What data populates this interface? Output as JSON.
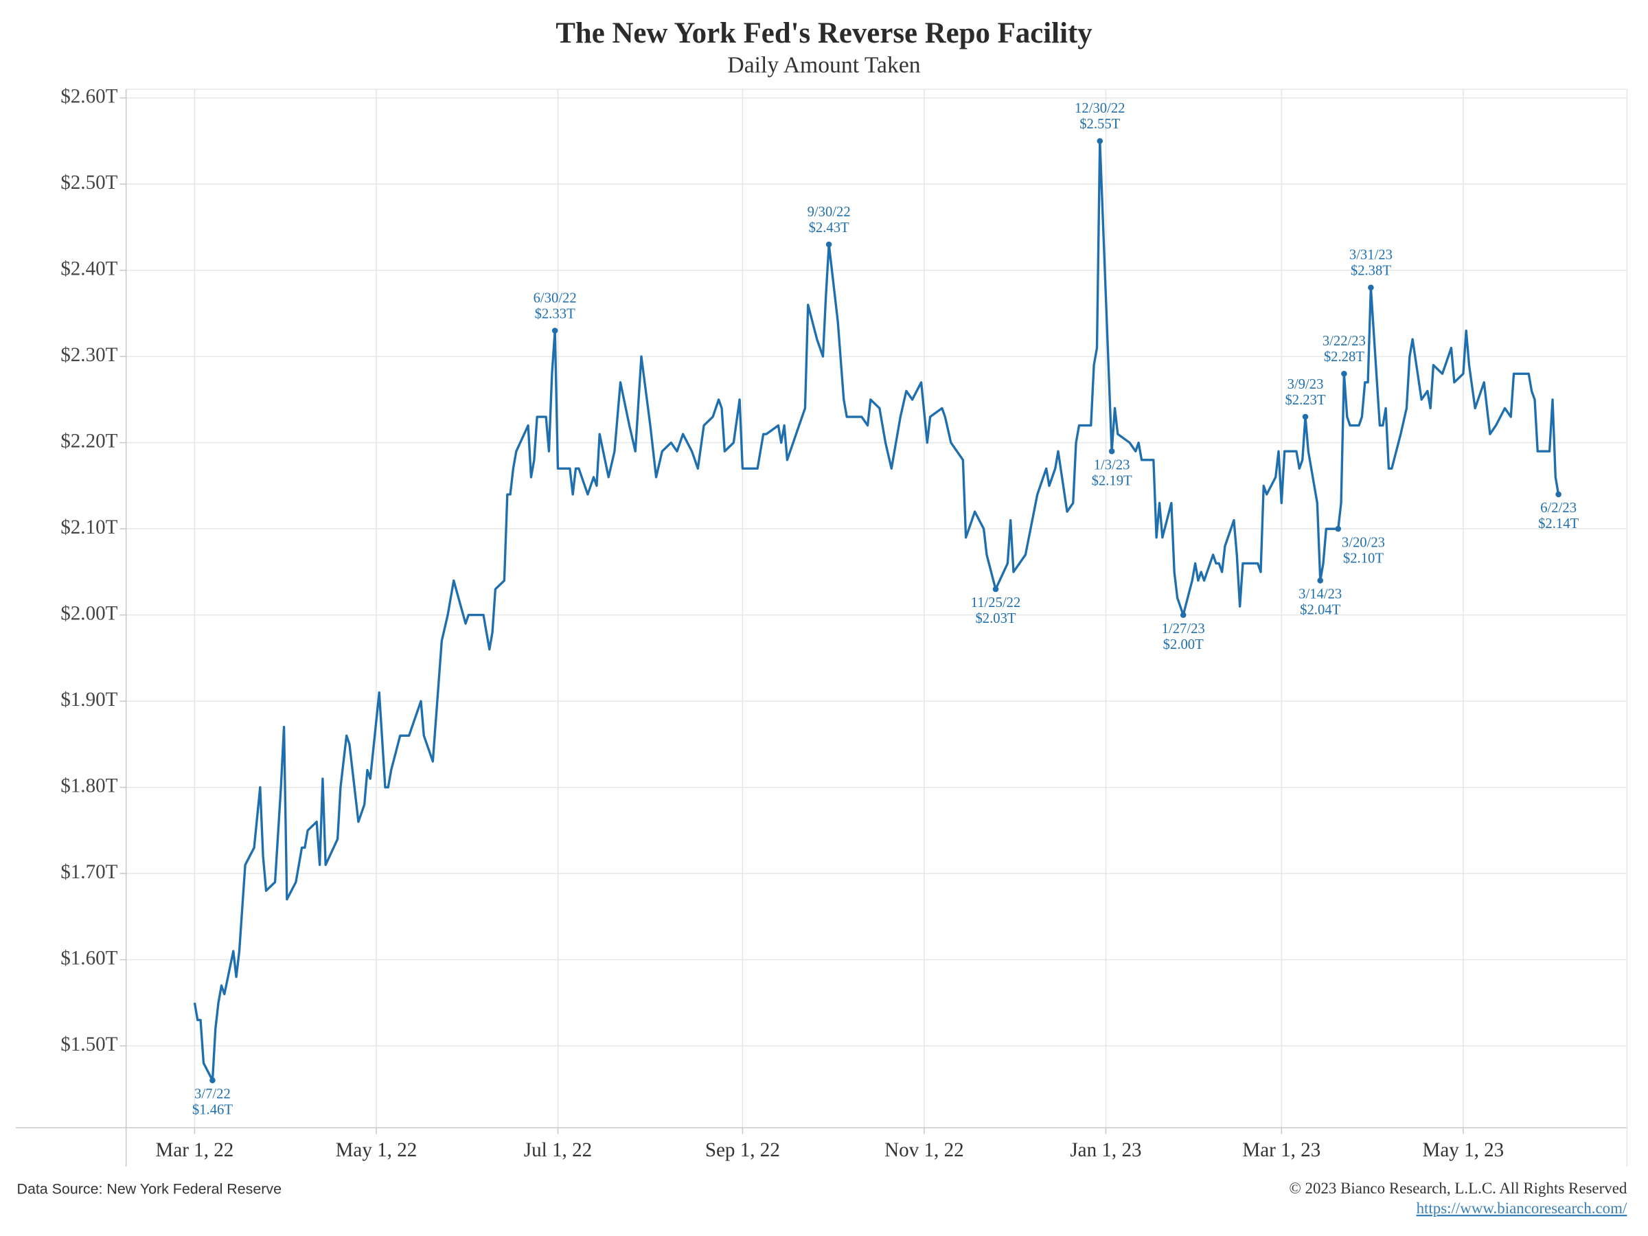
{
  "chart_data": {
    "type": "line",
    "title": "The New York Fed's Reverse Repo Facility",
    "subtitle": "Daily Amount Taken",
    "source": "Data Source: New York Federal Reserve",
    "copyright": "© 2023 Bianco Research, L.L.C. All Rights Reserved",
    "url": "https://www.biancoresearch.com/",
    "color": "#1f6fae",
    "grid": true,
    "xlim": [
      "2022-02-06",
      "2023-06-25"
    ],
    "ylim": [
      1.405,
      2.61
    ],
    "xticks": [
      {
        "value": "2022-03-01",
        "label": "Mar 1, 22"
      },
      {
        "value": "2022-05-01",
        "label": "May 1, 22"
      },
      {
        "value": "2022-07-01",
        "label": "Jul 1, 22"
      },
      {
        "value": "2022-09-01",
        "label": "Sep 1, 22"
      },
      {
        "value": "2022-11-01",
        "label": "Nov 1, 22"
      },
      {
        "value": "2023-01-01",
        "label": "Jan 1, 23"
      },
      {
        "value": "2023-03-01",
        "label": "Mar 1, 23"
      },
      {
        "value": "2023-05-01",
        "label": "May 1, 23"
      }
    ],
    "yticks": [
      {
        "value": 1.5,
        "label": "$1.50T"
      },
      {
        "value": 1.6,
        "label": "$1.60T"
      },
      {
        "value": 1.7,
        "label": "$1.70T"
      },
      {
        "value": 1.8,
        "label": "$1.80T"
      },
      {
        "value": 1.9,
        "label": "$1.90T"
      },
      {
        "value": 2.0,
        "label": "$2.00T"
      },
      {
        "value": 2.1,
        "label": "$2.10T"
      },
      {
        "value": 2.2,
        "label": "$2.20T"
      },
      {
        "value": 2.3,
        "label": "$2.30T"
      },
      {
        "value": 2.4,
        "label": "$2.40T"
      },
      {
        "value": 2.5,
        "label": "$2.50T"
      },
      {
        "value": 2.6,
        "label": "$2.60T"
      }
    ],
    "x": [
      "2022-03-01",
      "2022-03-02",
      "2022-03-03",
      "2022-03-04",
      "2022-03-07",
      "2022-03-08",
      "2022-03-09",
      "2022-03-10",
      "2022-03-11",
      "2022-03-14",
      "2022-03-15",
      "2022-03-16",
      "2022-03-17",
      "2022-03-18",
      "2022-03-21",
      "2022-03-23",
      "2022-03-24",
      "2022-03-25",
      "2022-03-28",
      "2022-03-30",
      "2022-03-31",
      "2022-04-01",
      "2022-04-04",
      "2022-04-06",
      "2022-04-07",
      "2022-04-08",
      "2022-04-11",
      "2022-04-12",
      "2022-04-13",
      "2022-04-14",
      "2022-04-18",
      "2022-04-19",
      "2022-04-21",
      "2022-04-22",
      "2022-04-25",
      "2022-04-27",
      "2022-04-28",
      "2022-04-29",
      "2022-05-02",
      "2022-05-04",
      "2022-05-05",
      "2022-05-06",
      "2022-05-09",
      "2022-05-11",
      "2022-05-12",
      "2022-05-13",
      "2022-05-16",
      "2022-05-17",
      "2022-05-19",
      "2022-05-20",
      "2022-05-23",
      "2022-05-25",
      "2022-05-27",
      "2022-05-31",
      "2022-06-01",
      "2022-06-03",
      "2022-06-06",
      "2022-06-07",
      "2022-06-08",
      "2022-06-09",
      "2022-06-10",
      "2022-06-13",
      "2022-06-14",
      "2022-06-15",
      "2022-06-16",
      "2022-06-17",
      "2022-06-21",
      "2022-06-22",
      "2022-06-23",
      "2022-06-24",
      "2022-06-27",
      "2022-06-28",
      "2022-06-29",
      "2022-06-30",
      "2022-07-01",
      "2022-07-05",
      "2022-07-06",
      "2022-07-07",
      "2022-07-08",
      "2022-07-11",
      "2022-07-13",
      "2022-07-14",
      "2022-07-15",
      "2022-07-18",
      "2022-07-20",
      "2022-07-22",
      "2022-07-25",
      "2022-07-27",
      "2022-07-29",
      "2022-08-01",
      "2022-08-03",
      "2022-08-05",
      "2022-08-08",
      "2022-08-10",
      "2022-08-12",
      "2022-08-15",
      "2022-08-17",
      "2022-08-19",
      "2022-08-22",
      "2022-08-24",
      "2022-08-25",
      "2022-08-26",
      "2022-08-29",
      "2022-08-31",
      "2022-09-01",
      "2022-09-06",
      "2022-09-08",
      "2022-09-09",
      "2022-09-13",
      "2022-09-14",
      "2022-09-15",
      "2022-09-16",
      "2022-09-20",
      "2022-09-22",
      "2022-09-23",
      "2022-09-26",
      "2022-09-28",
      "2022-09-29",
      "2022-09-30",
      "2022-10-03",
      "2022-10-05",
      "2022-10-06",
      "2022-10-07",
      "2022-10-11",
      "2022-10-13",
      "2022-10-14",
      "2022-10-17",
      "2022-10-19",
      "2022-10-21",
      "2022-10-24",
      "2022-10-26",
      "2022-10-28",
      "2022-10-31",
      "2022-11-02",
      "2022-11-03",
      "2022-11-07",
      "2022-11-08",
      "2022-11-10",
      "2022-11-14",
      "2022-11-15",
      "2022-11-17",
      "2022-11-18",
      "2022-11-21",
      "2022-11-22",
      "2022-11-25",
      "2022-11-29",
      "2022-11-30",
      "2022-12-01",
      "2022-12-05",
      "2022-12-09",
      "2022-12-12",
      "2022-12-13",
      "2022-12-15",
      "2022-12-16",
      "2022-12-19",
      "2022-12-21",
      "2022-12-22",
      "2022-12-23",
      "2022-12-27",
      "2022-12-28",
      "2022-12-29",
      "2022-12-30",
      "2023-01-03",
      "2023-01-04",
      "2023-01-05",
      "2023-01-09",
      "2023-01-11",
      "2023-01-12",
      "2023-01-13",
      "2023-01-17",
      "2023-01-18",
      "2023-01-19",
      "2023-01-20",
      "2023-01-23",
      "2023-01-24",
      "2023-01-25",
      "2023-01-27",
      "2023-01-30",
      "2023-01-31",
      "2023-02-01",
      "2023-02-02",
      "2023-02-03",
      "2023-02-06",
      "2023-02-07",
      "2023-02-08",
      "2023-02-09",
      "2023-02-10",
      "2023-02-13",
      "2023-02-14",
      "2023-02-15",
      "2023-02-16",
      "2023-02-17",
      "2023-02-21",
      "2023-02-22",
      "2023-02-23",
      "2023-02-24",
      "2023-02-27",
      "2023-02-28",
      "2023-03-01",
      "2023-03-02",
      "2023-03-03",
      "2023-03-06",
      "2023-03-07",
      "2023-03-08",
      "2023-03-09",
      "2023-03-10",
      "2023-03-13",
      "2023-03-14",
      "2023-03-15",
      "2023-03-16",
      "2023-03-17",
      "2023-03-20",
      "2023-03-21",
      "2023-03-22",
      "2023-03-23",
      "2023-03-24",
      "2023-03-27",
      "2023-03-28",
      "2023-03-29",
      "2023-03-30",
      "2023-03-31",
      "2023-04-03",
      "2023-04-04",
      "2023-04-05",
      "2023-04-06",
      "2023-04-07",
      "2023-04-10",
      "2023-04-12",
      "2023-04-13",
      "2023-04-14",
      "2023-04-17",
      "2023-04-19",
      "2023-04-20",
      "2023-04-21",
      "2023-04-24",
      "2023-04-25",
      "2023-04-27",
      "2023-04-28",
      "2023-05-01",
      "2023-05-02",
      "2023-05-03",
      "2023-05-05",
      "2023-05-08",
      "2023-05-10",
      "2023-05-12",
      "2023-05-15",
      "2023-05-17",
      "2023-05-18",
      "2023-05-23",
      "2023-05-24",
      "2023-05-25",
      "2023-05-26",
      "2023-05-30",
      "2023-05-31",
      "2023-06-01",
      "2023-06-02"
    ],
    "values": [
      1.55,
      1.53,
      1.53,
      1.48,
      1.46,
      1.52,
      1.55,
      1.57,
      1.56,
      1.61,
      1.58,
      1.61,
      1.66,
      1.71,
      1.73,
      1.8,
      1.72,
      1.68,
      1.69,
      1.8,
      1.87,
      1.67,
      1.69,
      1.73,
      1.73,
      1.75,
      1.76,
      1.71,
      1.81,
      1.71,
      1.74,
      1.8,
      1.86,
      1.85,
      1.76,
      1.78,
      1.82,
      1.81,
      1.91,
      1.8,
      1.8,
      1.82,
      1.86,
      1.86,
      1.86,
      1.87,
      1.9,
      1.86,
      1.84,
      1.83,
      1.97,
      2.0,
      2.04,
      1.99,
      2.0,
      2.0,
      2.0,
      1.98,
      1.96,
      1.98,
      2.03,
      2.04,
      2.14,
      2.14,
      2.17,
      2.19,
      2.22,
      2.16,
      2.18,
      2.23,
      2.23,
      2.19,
      2.28,
      2.33,
      2.17,
      2.17,
      2.14,
      2.17,
      2.17,
      2.14,
      2.16,
      2.15,
      2.21,
      2.16,
      2.19,
      2.27,
      2.22,
      2.19,
      2.3,
      2.22,
      2.16,
      2.19,
      2.2,
      2.19,
      2.21,
      2.19,
      2.17,
      2.22,
      2.23,
      2.25,
      2.24,
      2.19,
      2.2,
      2.25,
      2.17,
      2.17,
      2.21,
      2.21,
      2.22,
      2.2,
      2.22,
      2.18,
      2.22,
      2.24,
      2.36,
      2.32,
      2.3,
      2.37,
      2.43,
      2.34,
      2.25,
      2.23,
      2.23,
      2.23,
      2.22,
      2.25,
      2.24,
      2.2,
      2.17,
      2.23,
      2.26,
      2.25,
      2.27,
      2.2,
      2.23,
      2.24,
      2.23,
      2.2,
      2.18,
      2.09,
      2.11,
      2.12,
      2.1,
      2.07,
      2.03,
      2.06,
      2.11,
      2.05,
      2.07,
      2.14,
      2.17,
      2.15,
      2.17,
      2.19,
      2.12,
      2.13,
      2.2,
      2.22,
      2.22,
      2.29,
      2.31,
      2.55,
      2.19,
      2.24,
      2.21,
      2.2,
      2.19,
      2.2,
      2.18,
      2.18,
      2.09,
      2.13,
      2.09,
      2.13,
      2.05,
      2.02,
      2.0,
      2.04,
      2.06,
      2.04,
      2.05,
      2.04,
      2.07,
      2.06,
      2.06,
      2.05,
      2.08,
      2.11,
      2.07,
      2.01,
      2.06,
      2.06,
      2.06,
      2.05,
      2.15,
      2.14,
      2.16,
      2.19,
      2.13,
      2.19,
      2.19,
      2.19,
      2.17,
      2.18,
      2.23,
      2.19,
      2.13,
      2.04,
      2.06,
      2.1,
      2.1,
      2.1,
      2.13,
      2.28,
      2.23,
      2.22,
      2.22,
      2.23,
      2.27,
      2.27,
      2.38,
      2.22,
      2.22,
      2.24,
      2.17,
      2.17,
      2.21,
      2.24,
      2.3,
      2.32,
      2.25,
      2.26,
      2.24,
      2.29,
      2.28,
      2.29,
      2.31,
      2.27,
      2.28,
      2.33,
      2.29,
      2.24,
      2.27,
      2.21,
      2.22,
      2.24,
      2.23,
      2.28,
      2.28,
      2.26,
      2.25,
      2.19,
      2.19,
      2.25,
      2.16,
      2.14
    ],
    "annotations": [
      {
        "x": "2022-03-07",
        "value": 1.46,
        "label": "3/7/22",
        "value_label": "$1.46T"
      },
      {
        "x": "2022-06-30",
        "value": 2.33,
        "label": "6/30/22",
        "value_label": "$2.33T"
      },
      {
        "x": "2022-09-30",
        "value": 2.43,
        "label": "9/30/22",
        "value_label": "$2.43T"
      },
      {
        "x": "2022-11-25",
        "value": 2.03,
        "label": "11/25/22",
        "value_label": "$2.03T"
      },
      {
        "x": "2022-12-30",
        "value": 2.55,
        "label": "12/30/22",
        "value_label": "$2.55T"
      },
      {
        "x": "2023-01-03",
        "value": 2.19,
        "label": "1/3/23",
        "value_label": "$2.19T"
      },
      {
        "x": "2023-01-27",
        "value": 2.0,
        "label": "1/27/23",
        "value_label": "$2.00T"
      },
      {
        "x": "2023-03-09",
        "value": 2.23,
        "label": "3/9/23",
        "value_label": "$2.23T"
      },
      {
        "x": "2023-03-14",
        "value": 2.04,
        "label": "3/14/23",
        "value_label": "$2.04T"
      },
      {
        "x": "2023-03-20",
        "value": 2.1,
        "label": "3/20/23",
        "value_label": "$2.10T"
      },
      {
        "x": "2023-03-22",
        "value": 2.28,
        "label": "3/22/23",
        "value_label": "$2.28T"
      },
      {
        "x": "2023-03-31",
        "value": 2.38,
        "label": "3/31/23",
        "value_label": "$2.38T"
      },
      {
        "x": "2023-06-02",
        "value": 2.14,
        "label": "6/2/23",
        "value_label": "$2.14T"
      }
    ]
  }
}
